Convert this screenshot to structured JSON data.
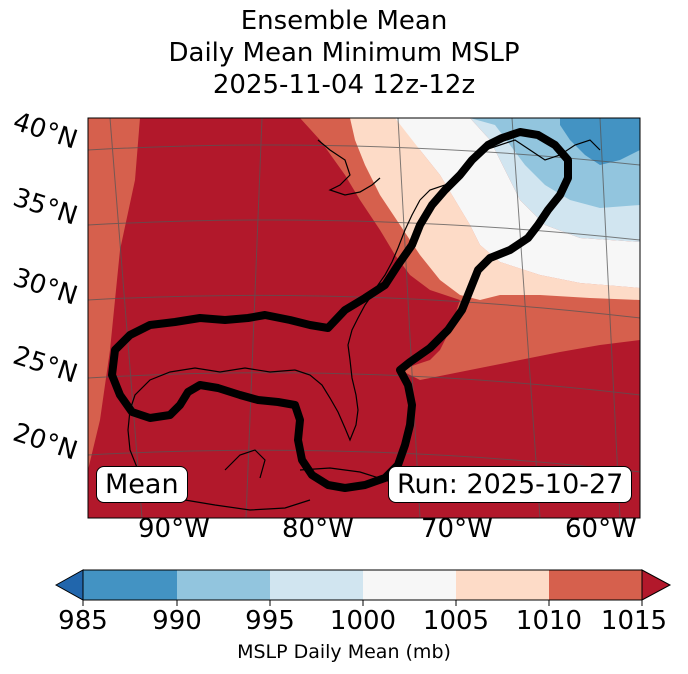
{
  "title": {
    "line1": "Ensemble Mean",
    "line2": "Daily Mean Minimum MSLP",
    "line3": "2025-11-04 12z-12z"
  },
  "map": {
    "lat_labels": [
      "40°N",
      "35°N",
      "30°N",
      "25°N",
      "20°N"
    ],
    "lon_labels": [
      "90°W",
      "80°W",
      "70°W",
      "60°W"
    ],
    "mean_label": "Mean",
    "run_label": "Run: 2025-10-27",
    "contour_color": "#000000",
    "coastline_color": "#000000"
  },
  "colorbar": {
    "label": "MSLP Daily Mean (mb)",
    "ticks": [
      "985",
      "990",
      "995",
      "1000",
      "1005",
      "1010",
      "1015"
    ],
    "colors": [
      "#2166ac",
      "#4393c3",
      "#92c5de",
      "#d1e5f0",
      "#f7f7f7",
      "#fddbc7",
      "#d6604d",
      "#b2182b"
    ]
  }
}
